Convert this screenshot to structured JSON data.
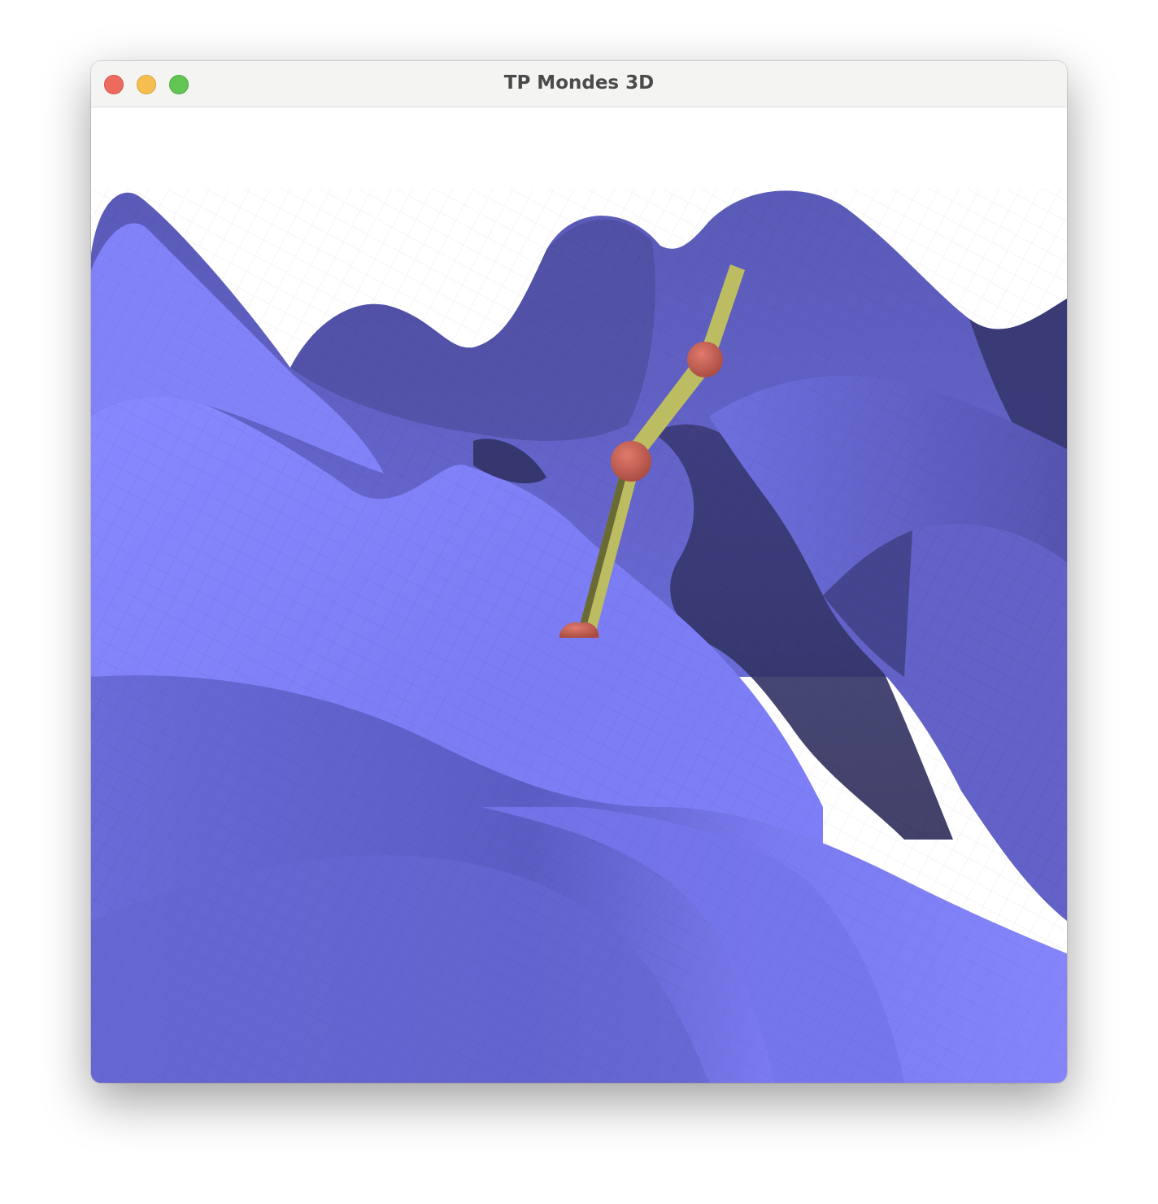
{
  "window": {
    "title": "TP Mondes 3D",
    "controls": {
      "close": "close-icon",
      "minimize": "minimize-icon",
      "maximize": "maximize-icon"
    }
  },
  "scene": {
    "terrain_color": "#7b7bf0",
    "terrain_shadow_color": "#2e2e5a",
    "arm_segment_color": "#bcbc62",
    "joint_color": "#d06a5c",
    "background_color": "#ffffff"
  }
}
